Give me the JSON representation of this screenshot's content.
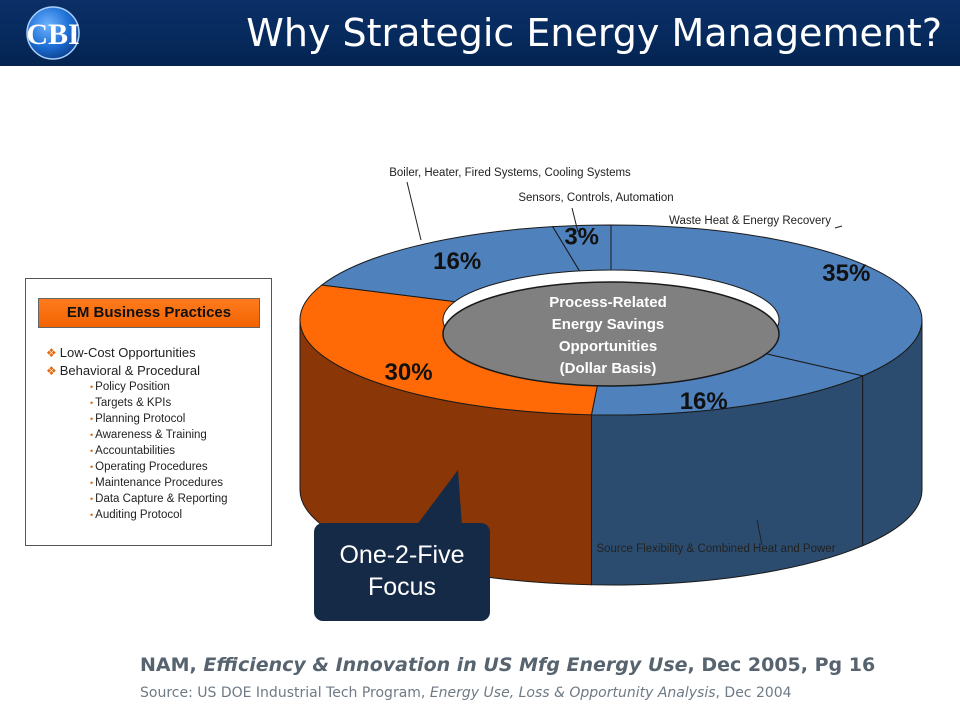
{
  "slide": {
    "title": "Why Strategic Energy Management?",
    "logo_text": "CBI",
    "header_color": "#062a5c"
  },
  "chart_data": {
    "type": "pie",
    "variant": "3d-donut",
    "center_label": [
      "Process-Related",
      "Energy Savings",
      "Opportunities",
      "(Dollar Basis)"
    ],
    "slices": [
      {
        "label": "Waste Heat & Energy Recovery",
        "value": 35,
        "value_label": "35%",
        "color": "#4f81bd",
        "side_color": "#2b4c6e"
      },
      {
        "label": "Source Flexibility & Combined Heat and Power",
        "value": 16,
        "value_label": "16%",
        "color": "#4f81bd",
        "side_color": "#2b4c6e"
      },
      {
        "label": "",
        "value": 30,
        "value_label": "30%",
        "color": "#ff6a06",
        "side_color": "#8a3606"
      },
      {
        "label": "Boiler, Heater, Fired Systems, Cooling Systems",
        "value": 16,
        "value_label": "16%",
        "color": "#4f81bd",
        "side_color": "#2b4c6e"
      },
      {
        "label": "Sensors, Controls, Automation",
        "value": 3,
        "value_label": "3%",
        "color": "#4f81bd",
        "side_color": "#2b4c6e"
      }
    ]
  },
  "em_box": {
    "title": "EM Business Practices",
    "items": [
      "Low-Cost Opportunities",
      "Behavioral & Procedural"
    ],
    "subitems": [
      "Policy Position",
      "Targets & KPIs",
      "Planning Protocol",
      "Awareness & Training",
      "Accountabilities",
      "Operating Procedures",
      "Maintenance Procedures",
      "Data Capture & Reporting",
      "Auditing Protocol"
    ],
    "accent": "#f26300"
  },
  "callout": {
    "line1": "One-2-Five",
    "line2": "Focus",
    "color": "#152a47"
  },
  "reference": {
    "prefix": "NAM, ",
    "title_italic": "Efficiency & Innovation in US Mfg Energy Use",
    "suffix": ", Dec 2005, Pg 16",
    "source_prefix": "Source: US DOE Industrial Tech Program, ",
    "source_italic": "Energy Use, Loss & Opportunity Analysis",
    "source_suffix": ", Dec 2004"
  }
}
